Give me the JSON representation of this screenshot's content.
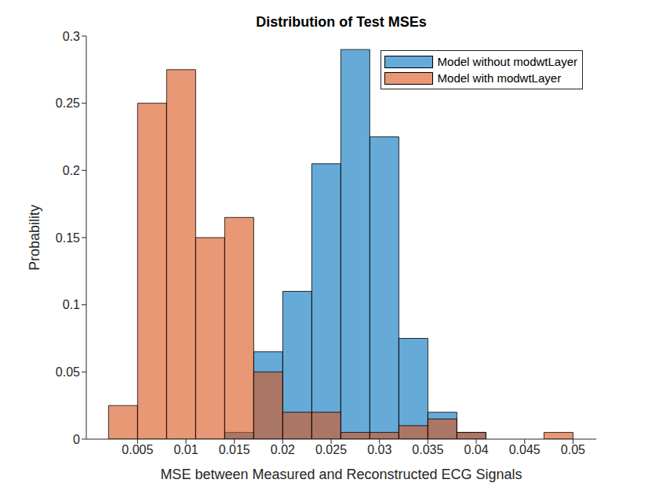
{
  "chart_data": {
    "type": "histogram",
    "title": "Distribution of Test MSEs",
    "x_label": "MSE between Measured and Reconstructed ECG Signals",
    "y_label": "Probability",
    "bins": [
      0.002,
      0.005,
      0.008,
      0.011,
      0.014,
      0.017,
      0.02,
      0.023,
      0.026,
      0.029,
      0.032,
      0.035,
      0.038,
      0.041,
      0.044,
      0.047,
      0.05
    ],
    "series": [
      {
        "name": "Model without modwtLayer",
        "color": "#0072BD",
        "values": [
          0,
          0,
          0,
          0,
          0.005,
          0.065,
          0.11,
          0.205,
          0.29,
          0.225,
          0.075,
          0.02,
          0.005,
          0,
          0,
          0
        ]
      },
      {
        "name": "Model with modwtLayer",
        "color": "#D95319",
        "values": [
          0.025,
          0.25,
          0.275,
          0.15,
          0.165,
          0.05,
          0.02,
          0.02,
          0.005,
          0.005,
          0.01,
          0.015,
          0.005,
          0,
          0,
          0.005
        ]
      }
    ],
    "xlim": [
      -0.0003,
      0.0524
    ],
    "xticks": [
      0.005,
      0.01,
      0.015,
      0.02,
      0.025,
      0.03,
      0.035,
      0.04,
      0.045,
      0.05
    ],
    "ylim": [
      0,
      0.3
    ],
    "yticks": [
      0,
      0.05,
      0.1,
      0.15,
      0.2,
      0.25,
      0.3
    ],
    "legend": "northeast"
  }
}
